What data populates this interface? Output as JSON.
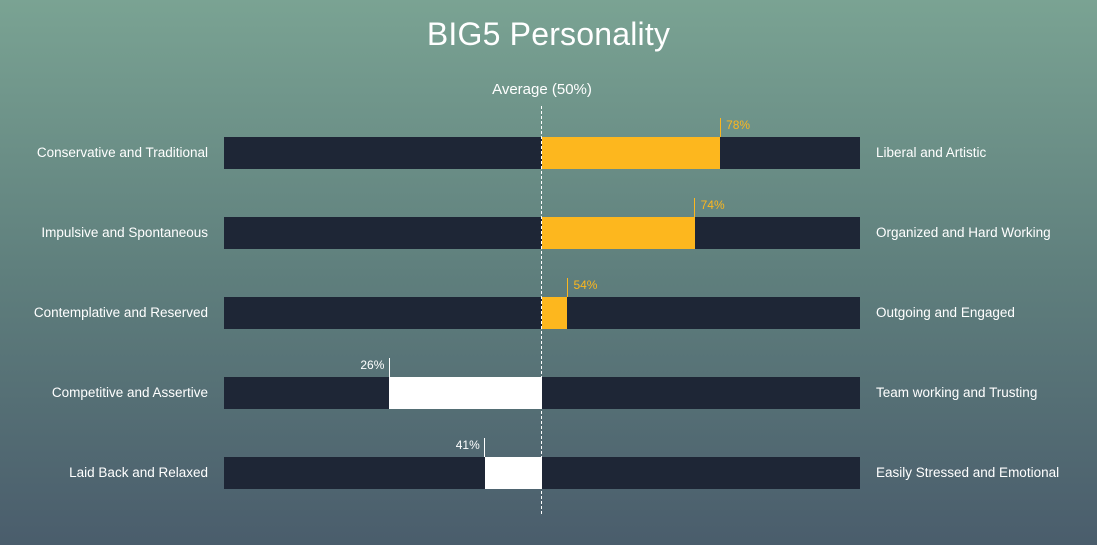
{
  "chart_data": {
    "type": "bar",
    "title": "BIG5 Personality",
    "reference": {
      "label": "Average (50%)",
      "value": 50
    },
    "xlim": [
      0,
      100
    ],
    "high_color": "#fdb71e",
    "low_color": "#ffffff",
    "track_color": "#1e2636",
    "rows": [
      {
        "left": "Conservative and Traditional",
        "right": "Liberal and Artistic",
        "value": 78,
        "label": "78%"
      },
      {
        "left": "Impulsive and Spontaneous",
        "right": "Organized and Hard Working",
        "value": 74,
        "label": "74%"
      },
      {
        "left": "Contemplative and Reserved",
        "right": "Outgoing and Engaged",
        "value": 54,
        "label": "54%"
      },
      {
        "left": "Competitive and Assertive",
        "right": "Team working and Trusting",
        "value": 26,
        "label": "26%"
      },
      {
        "left": "Laid Back and Relaxed",
        "right": "Easily Stressed and Emotional",
        "value": 41,
        "label": "41%"
      }
    ]
  }
}
